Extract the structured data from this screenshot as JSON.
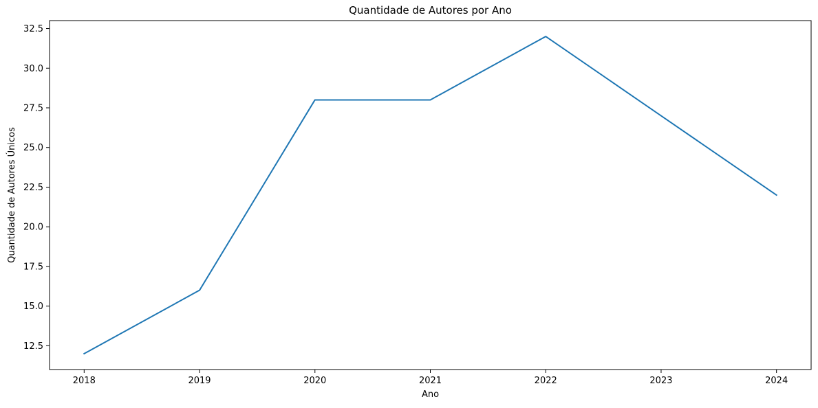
{
  "chart_data": {
    "type": "line",
    "title": "Quantidade de Autores por Ano",
    "xlabel": "Ano",
    "ylabel": "Quantidade de Autores Únicos",
    "x": [
      2018,
      2019,
      2020,
      2021,
      2022,
      2023,
      2024
    ],
    "series": [
      {
        "values": [
          12,
          16,
          28,
          28,
          32,
          27,
          22
        ],
        "color": "#1f77b4"
      }
    ],
    "xlim": [
      2017.7,
      2024.3
    ],
    "ylim": [
      11.0,
      33.0
    ],
    "xticks": [
      "2018",
      "2019",
      "2020",
      "2021",
      "2022",
      "2023",
      "2024"
    ],
    "yticks": [
      "12.5",
      "15.0",
      "17.5",
      "20.0",
      "22.5",
      "25.0",
      "27.5",
      "30.0",
      "32.5"
    ],
    "grid": false,
    "legend": "none"
  }
}
